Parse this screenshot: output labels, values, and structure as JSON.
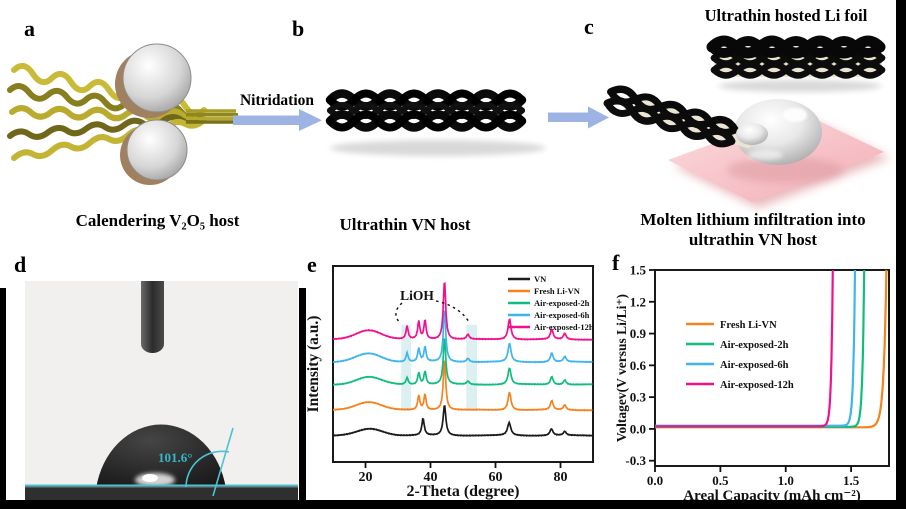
{
  "figure": {
    "panel_labels": {
      "a": "a",
      "b": "b",
      "c": "c",
      "d": "d",
      "e": "e",
      "f": "f"
    },
    "captions": {
      "a": "Calendering V₂O₅ host",
      "b": "Ultrathin VN host",
      "c_top": "Ultrathin hosted Li foil",
      "c_line1": "Molten lithium infiltration into",
      "c_line2": "ultrathin VN host",
      "nitridation": "Nitridation",
      "contact_angle": "101.6°"
    },
    "colors": {
      "arrow_blue": "#9CB3E4",
      "pad_pink": "#F6BFC4",
      "vn_black": "#1a1a1a",
      "fresh_orange": "#F5821F",
      "exposed2h_green": "#10BE7C",
      "exposed6h_blue": "#3FB4ED",
      "exposed12h_magenta": "#F2108C",
      "cyan_annotation": "#3AB7C9",
      "band_highlight": "#D8EDF0"
    }
  },
  "chart_data": [
    {
      "id": "xrd",
      "type": "line",
      "title": "",
      "xlabel": "2-Theta (degree)",
      "ylabel": "Intensity (a.u.)",
      "xlim": [
        10,
        90
      ],
      "xticks": [
        20,
        40,
        60,
        80
      ],
      "grid": false,
      "annotation": "LiOH",
      "highlight_bands": [
        {
          "x0": 31.0,
          "x1": 34.0
        },
        {
          "x0": 51.0,
          "x1": 54.3
        }
      ],
      "legend_position": "top-right",
      "series": [
        {
          "name": "VN",
          "color": "#1a1a1a",
          "baseline": 0.865,
          "amp": 0.155,
          "hump": {
            "c": 21.5,
            "h": 0.22,
            "w": 5.5
          },
          "peaks": [
            [
              37.7,
              0.55,
              0.45
            ],
            [
              44.3,
              1,
              0.5
            ],
            [
              64.2,
              0.42,
              0.6
            ],
            [
              77.2,
              0.22,
              0.55
            ],
            [
              81.3,
              0.13,
              0.5
            ]
          ]
        },
        {
          "name": "Fresh Li-VN",
          "color": "#F5821F",
          "baseline": 0.735,
          "amp": 0.26,
          "hump": {
            "c": 21.0,
            "h": 0.16,
            "w": 5.5
          },
          "peaks": [
            [
              36.4,
              0.28,
              0.4
            ],
            [
              38.3,
              0.3,
              0.4
            ],
            [
              44.3,
              1,
              0.45
            ],
            [
              64.3,
              0.35,
              0.55
            ],
            [
              77.3,
              0.18,
              0.5
            ],
            [
              81.3,
              0.1,
              0.5
            ]
          ]
        },
        {
          "name": "Air-exposed-2h",
          "color": "#10BE7C",
          "baseline": 0.605,
          "amp": 0.24,
          "hump": {
            "c": 21.0,
            "h": 0.16,
            "w": 5.5
          },
          "peaks": [
            [
              32.8,
              0.15,
              0.4
            ],
            [
              36.4,
              0.25,
              0.4
            ],
            [
              38.3,
              0.28,
              0.4
            ],
            [
              44.3,
              1,
              0.45
            ],
            [
              51.5,
              0.07,
              0.5
            ],
            [
              64.3,
              0.35,
              0.55
            ],
            [
              77.3,
              0.17,
              0.5
            ],
            [
              81.3,
              0.1,
              0.5
            ]
          ]
        },
        {
          "name": "Air-exposed-6h",
          "color": "#3FB4ED",
          "baseline": 0.49,
          "amp": 0.27,
          "hump": {
            "c": 21.0,
            "h": 0.16,
            "w": 5.5
          },
          "peaks": [
            [
              32.8,
              0.17,
              0.4
            ],
            [
              36.4,
              0.25,
              0.4
            ],
            [
              38.3,
              0.28,
              0.4
            ],
            [
              44.3,
              1,
              0.45
            ],
            [
              51.5,
              0.07,
              0.5
            ],
            [
              64.3,
              0.35,
              0.55
            ],
            [
              77.3,
              0.17,
              0.5
            ],
            [
              81.3,
              0.1,
              0.5
            ]
          ]
        },
        {
          "name": "Air-exposed-12h",
          "color": "#F2108C",
          "baseline": 0.375,
          "amp": 0.3,
          "hump": {
            "c": 21.0,
            "h": 0.16,
            "w": 5.5
          },
          "peaks": [
            [
              32.8,
              0.22,
              0.4
            ],
            [
              36.4,
              0.3,
              0.4
            ],
            [
              38.3,
              0.32,
              0.4
            ],
            [
              44.3,
              1,
              0.45
            ],
            [
              51.5,
              0.08,
              0.5
            ],
            [
              64.3,
              0.35,
              0.55
            ],
            [
              77.3,
              0.17,
              0.5
            ],
            [
              81.3,
              0.1,
              0.5
            ]
          ]
        }
      ]
    },
    {
      "id": "voltage",
      "type": "line",
      "title": "",
      "xlabel": "Areal Capacity (mAh cm⁻²)",
      "ylabel": "Voltagev(V versus Li/Li⁺)",
      "xlim": [
        0,
        1.79
      ],
      "ylim": [
        -0.35,
        1.5
      ],
      "xticks": [
        0.0,
        0.5,
        1.0,
        1.5
      ],
      "yticks": [
        -0.3,
        0.0,
        0.3,
        0.6,
        0.9,
        1.2,
        1.5
      ],
      "grid": false,
      "legend_position": "middle-left",
      "series": [
        {
          "name": "Fresh Li-VN",
          "color": "#F5821F",
          "plateau_v": 0.015,
          "capacity_at_1p5V": 1.77,
          "steepness": 0.021
        },
        {
          "name": "Air-exposed-2h",
          "color": "#10BE7C",
          "plateau_v": 0.02,
          "capacity_at_1p5V": 1.6,
          "steepness": 0.013
        },
        {
          "name": "Air-exposed-6h",
          "color": "#3FB4ED",
          "plateau_v": 0.03,
          "capacity_at_1p5V": 1.53,
          "steepness": 0.013
        },
        {
          "name": "Air-exposed-12h",
          "color": "#F2108C",
          "plateau_v": 0.025,
          "capacity_at_1p5V": 1.36,
          "steepness": 0.012
        }
      ]
    }
  ]
}
